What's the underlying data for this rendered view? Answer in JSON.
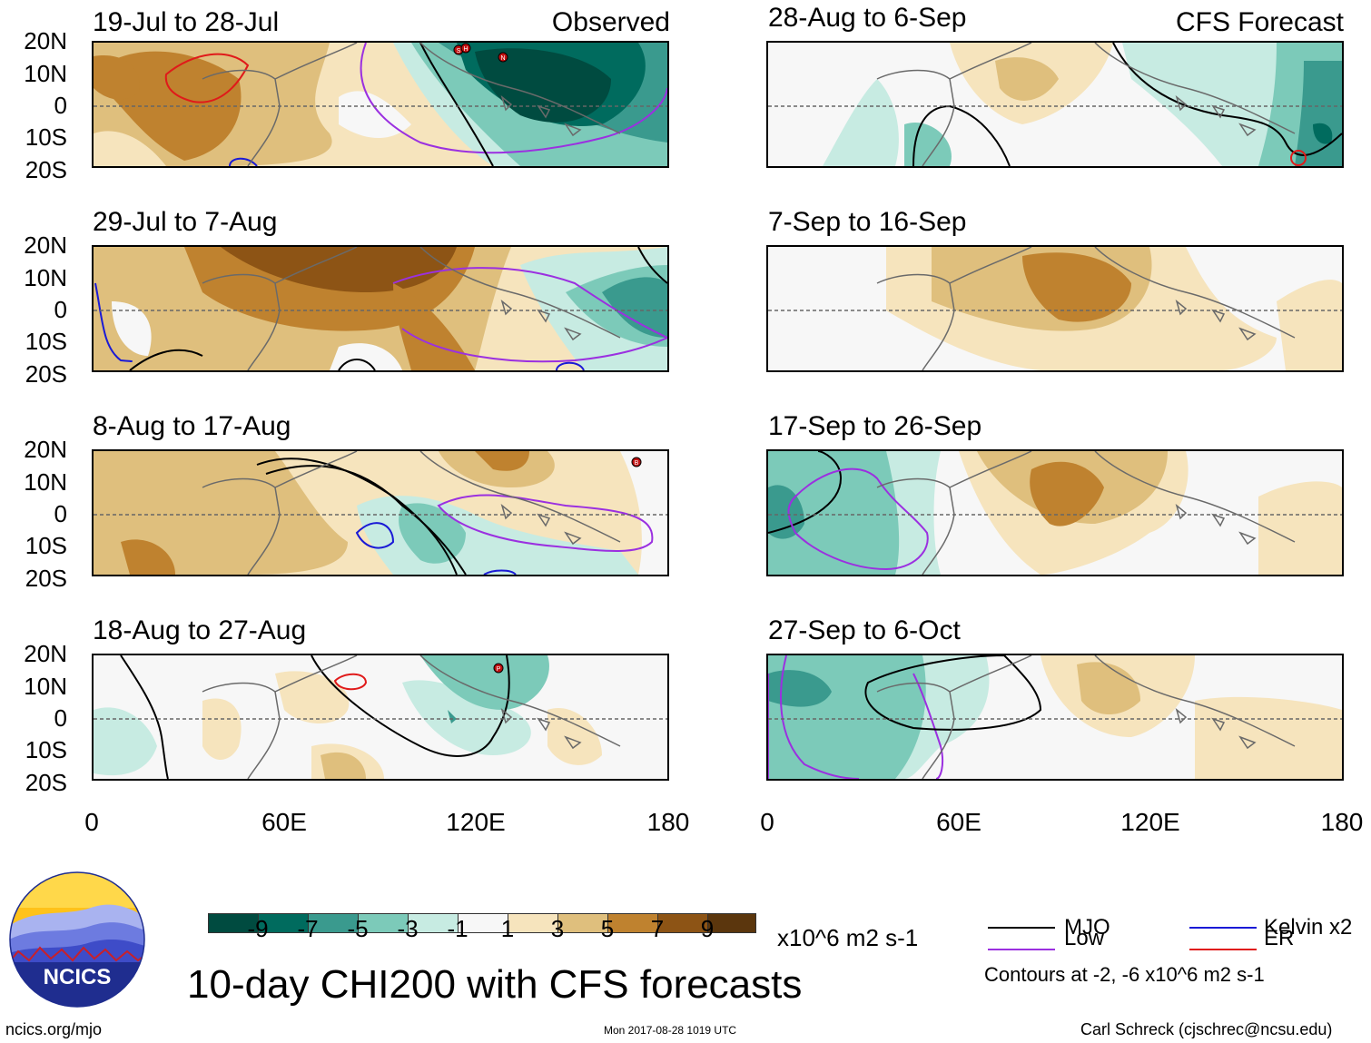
{
  "panels": [
    {
      "title": "19-Jul to 28-Jul",
      "label": "Observed"
    },
    {
      "title": "28-Aug to 6-Sep",
      "label": "CFS Forecast"
    },
    {
      "title": "29-Jul to 7-Aug",
      "label": ""
    },
    {
      "title": "7-Sep to 16-Sep",
      "label": ""
    },
    {
      "title": "8-Aug to 17-Aug",
      "label": ""
    },
    {
      "title": "17-Sep to 26-Sep",
      "label": ""
    },
    {
      "title": "18-Aug to 27-Aug",
      "label": ""
    },
    {
      "title": "27-Sep to 6-Oct",
      "label": ""
    }
  ],
  "lat_labels": [
    "20N",
    "10N",
    "0",
    "10S",
    "20S"
  ],
  "lon_labels": [
    "0",
    "60E",
    "120E",
    "180"
  ],
  "colorbar": {
    "colors": [
      "#004b40",
      "#006b5e",
      "#3a9a8e",
      "#7ccab9",
      "#c7ebe2",
      "#f7f7f7",
      "#f6e4bd",
      "#dfbf7d",
      "#bf822f",
      "#8d5415",
      "#5b360d"
    ],
    "ticks": [
      "-9",
      "-7",
      "-5",
      "-3",
      "-1",
      "1",
      "3",
      "5",
      "7",
      "9"
    ],
    "units": "x10^6 m2 s-1"
  },
  "legend": {
    "items": [
      {
        "label": "MJO",
        "color": "#000000"
      },
      {
        "label": "Kelvin x2",
        "color": "#1a1ad6"
      },
      {
        "label": "Low",
        "color": "#9b30e0"
      },
      {
        "label": "ER",
        "color": "#e01a1a"
      }
    ],
    "note": "Contours at -2, -6 x10^6 m2 s-1"
  },
  "main_title": "10-day CHI200 with CFS forecasts",
  "logo_text": "NCICS",
  "footer": {
    "website": "ncics.org/mjo",
    "timestamp": "Mon 2017-08-28 1019 UTC",
    "author": "Carl Schreck (cjschrec@ncsu.edu)"
  },
  "storm_markers": [
    "S",
    "H",
    "N",
    "B",
    "P"
  ]
}
